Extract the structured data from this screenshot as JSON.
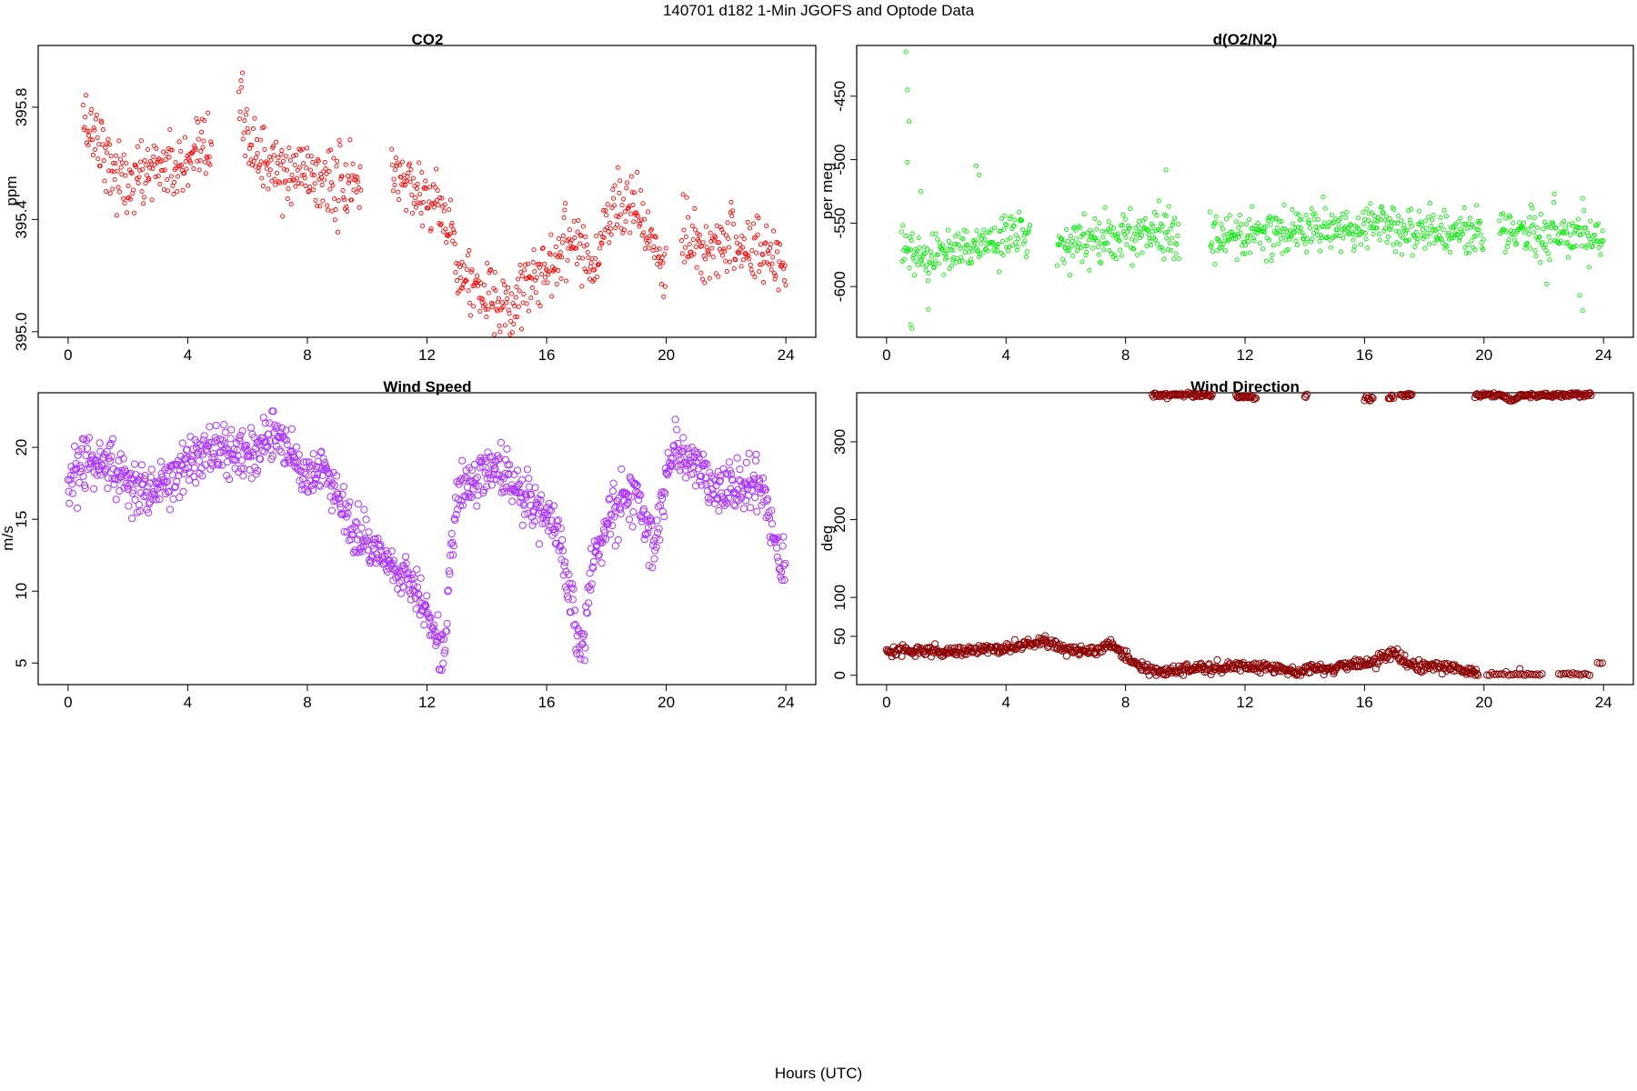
{
  "figure": {
    "title": "140701   d182   1-Min  JGOFS and Optode Data",
    "xlabel": "Hours (UTC)"
  },
  "chart_data": [
    {
      "id": "co2",
      "type": "scatter",
      "title": "CO2",
      "ylabel": "ppm",
      "color": "#ff0000",
      "marker_size": "small",
      "xlim": [
        -1,
        25
      ],
      "ylim": [
        394.98,
        396.02
      ],
      "xticks": [
        0,
        4,
        8,
        12,
        16,
        20,
        24
      ],
      "yticks": [
        395.0,
        395.4,
        395.8
      ],
      "ytick_labels": [
        "395.0",
        "395.4",
        "395.8"
      ],
      "gaps": [
        [
          4.8,
          5.7
        ],
        [
          9.8,
          10.8
        ],
        [
          20.0,
          20.5
        ]
      ],
      "trend": [
        [
          0.5,
          395.75
        ],
        [
          1.0,
          395.7
        ],
        [
          1.5,
          395.58
        ],
        [
          2.0,
          395.52
        ],
        [
          2.5,
          395.56
        ],
        [
          3.0,
          395.6
        ],
        [
          3.5,
          395.58
        ],
        [
          4.0,
          395.58
        ],
        [
          4.5,
          395.62
        ],
        [
          4.8,
          395.66
        ],
        [
          5.7,
          395.8
        ],
        [
          6.2,
          395.65
        ],
        [
          6.8,
          395.58
        ],
        [
          7.3,
          395.55
        ],
        [
          7.8,
          395.58
        ],
        [
          8.3,
          395.55
        ],
        [
          9.0,
          395.52
        ],
        [
          9.8,
          395.52
        ],
        [
          10.8,
          395.58
        ],
        [
          11.5,
          395.52
        ],
        [
          12.2,
          395.47
        ],
        [
          12.8,
          395.36
        ],
        [
          13.3,
          395.18
        ],
        [
          14.0,
          395.12
        ],
        [
          14.8,
          395.05
        ],
        [
          15.2,
          395.18
        ],
        [
          16.0,
          395.22
        ],
        [
          16.5,
          395.3
        ],
        [
          16.9,
          395.35
        ],
        [
          17.2,
          395.3
        ],
        [
          17.6,
          395.22
        ],
        [
          18.0,
          395.4
        ],
        [
          18.5,
          395.48
        ],
        [
          19.0,
          395.45
        ],
        [
          19.5,
          395.3
        ],
        [
          20.0,
          395.2
        ],
        [
          20.5,
          395.35
        ],
        [
          21.2,
          395.25
        ],
        [
          22.0,
          395.35
        ],
        [
          22.5,
          395.3
        ],
        [
          23.3,
          395.28
        ],
        [
          24.0,
          395.23
        ]
      ]
    },
    {
      "id": "o2n2",
      "type": "scatter",
      "title": "d(O2/N2)",
      "ylabel": "per meg",
      "color": "#00ee00",
      "marker_size": "small",
      "xlim": [
        -1,
        25
      ],
      "ylim": [
        -640,
        -410
      ],
      "xticks": [
        0,
        4,
        8,
        12,
        16,
        20,
        24
      ],
      "yticks": [
        -600,
        -550,
        -500,
        -450
      ],
      "ytick_labels": [
        "-600",
        "-550",
        "-500",
        "-450"
      ],
      "gaps": [
        [
          4.8,
          5.7
        ],
        [
          9.8,
          10.8
        ],
        [
          20.0,
          20.5
        ]
      ],
      "trend": [
        [
          0.5,
          -565
        ],
        [
          1.0,
          -575
        ],
        [
          2.0,
          -573
        ],
        [
          3.0,
          -568
        ],
        [
          4.0,
          -562
        ],
        [
          4.8,
          -558
        ],
        [
          5.7,
          -565
        ],
        [
          8.0,
          -560
        ],
        [
          9.8,
          -556
        ],
        [
          10.8,
          -563
        ],
        [
          13.0,
          -558
        ],
        [
          16.0,
          -552
        ],
        [
          18.0,
          -556
        ],
        [
          20.0,
          -558
        ],
        [
          20.5,
          -558
        ],
        [
          22.0,
          -557
        ],
        [
          24.0,
          -560
        ]
      ],
      "outliers": [
        [
          0.65,
          -415
        ],
        [
          0.7,
          -445
        ],
        [
          0.75,
          -470
        ],
        [
          0.7,
          -502
        ],
        [
          0.8,
          -630
        ],
        [
          0.85,
          -633
        ],
        [
          1.15,
          -525
        ],
        [
          1.4,
          -618
        ],
        [
          3.0,
          -505
        ],
        [
          3.1,
          -512
        ],
        [
          9.35,
          -508
        ],
        [
          22.1,
          -598
        ],
        [
          22.35,
          -527
        ],
        [
          23.2,
          -607
        ],
        [
          23.3,
          -619
        ]
      ]
    },
    {
      "id": "wspd",
      "type": "scatter",
      "title": "Wind Speed",
      "ylabel": "m/s",
      "color": "#aa33ff",
      "marker_size": "large",
      "xlim": [
        -1,
        25
      ],
      "ylim": [
        3.5,
        23.8
      ],
      "xticks": [
        0,
        4,
        8,
        12,
        16,
        20,
        24
      ],
      "yticks": [
        5,
        10,
        15,
        20
      ],
      "ytick_labels": [
        "5",
        "10",
        "15",
        "20"
      ],
      "gaps": [],
      "trend": [
        [
          0.0,
          17.0
        ],
        [
          0.5,
          19.0
        ],
        [
          1.0,
          19.0
        ],
        [
          1.5,
          18.5
        ],
        [
          2.0,
          17.5
        ],
        [
          2.5,
          17.0
        ],
        [
          3.0,
          17.0
        ],
        [
          3.5,
          18.0
        ],
        [
          4.0,
          19.0
        ],
        [
          4.5,
          19.5
        ],
        [
          5.0,
          20.0
        ],
        [
          5.5,
          19.5
        ],
        [
          6.0,
          19.5
        ],
        [
          6.5,
          20.5
        ],
        [
          7.0,
          21.0
        ],
        [
          7.5,
          19.5
        ],
        [
          8.0,
          17.5
        ],
        [
          8.5,
          18.5
        ],
        [
          9.0,
          17.0
        ],
        [
          9.5,
          14.0
        ],
        [
          10.0,
          13.0
        ],
        [
          10.5,
          12.5
        ],
        [
          11.0,
          11.5
        ],
        [
          11.5,
          10.5
        ],
        [
          12.0,
          9.0
        ],
        [
          12.3,
          7.0
        ],
        [
          12.6,
          5.5
        ],
        [
          12.8,
          13.0
        ],
        [
          13.0,
          16.5
        ],
        [
          13.5,
          17.5
        ],
        [
          14.0,
          18.5
        ],
        [
          14.5,
          18.5
        ],
        [
          15.0,
          17.0
        ],
        [
          15.5,
          16.0
        ],
        [
          16.0,
          15.5
        ],
        [
          16.5,
          13.0
        ],
        [
          17.0,
          7.5
        ],
        [
          17.2,
          5.5
        ],
        [
          17.5,
          11.5
        ],
        [
          18.0,
          14.5
        ],
        [
          18.5,
          16.5
        ],
        [
          19.0,
          17.0
        ],
        [
          19.3,
          15.0
        ],
        [
          19.6,
          14.0
        ],
        [
          20.0,
          18.0
        ],
        [
          20.3,
          20.0
        ],
        [
          20.8,
          19.0
        ],
        [
          21.5,
          17.5
        ],
        [
          22.0,
          17.0
        ],
        [
          22.5,
          17.5
        ],
        [
          23.0,
          17.5
        ],
        [
          23.3,
          16.5
        ],
        [
          23.6,
          13.5
        ],
        [
          24.0,
          11.0
        ]
      ]
    },
    {
      "id": "wdir",
      "type": "scatter",
      "title": "Wind Direction",
      "ylabel": "deg",
      "color": "#8b0000",
      "marker_size": "large",
      "xlim": [
        -1,
        25
      ],
      "ylim": [
        -12,
        363
      ],
      "xticks": [
        0,
        4,
        8,
        12,
        16,
        20,
        24
      ],
      "yticks": [
        0,
        50,
        100,
        200,
        300
      ],
      "ytick_labels": [
        "0",
        "50",
        "100",
        "200",
        "300"
      ],
      "gaps": [],
      "low_trend": [
        [
          0,
          30
        ],
        [
          1,
          32
        ],
        [
          2,
          30
        ],
        [
          3,
          33
        ],
        [
          4,
          35
        ],
        [
          5,
          42
        ],
        [
          5.2,
          47
        ],
        [
          6,
          33
        ],
        [
          7,
          32
        ],
        [
          7.5,
          40
        ],
        [
          8,
          25
        ],
        [
          8.3,
          18
        ],
        [
          8.5,
          10
        ],
        [
          9,
          5
        ],
        [
          11,
          10
        ],
        [
          12,
          12
        ],
        [
          13,
          8
        ],
        [
          14,
          6
        ],
        [
          15,
          10
        ],
        [
          16,
          15
        ],
        [
          16.5,
          22
        ],
        [
          17,
          30
        ],
        [
          17.2,
          20
        ],
        [
          17.5,
          12
        ],
        [
          18,
          10
        ],
        [
          19,
          10
        ],
        [
          19.5,
          5
        ],
        [
          19.8,
          0
        ]
      ],
      "low_range": [
        0,
        19.8
      ],
      "high_segments": [
        [
          8.9,
          10.9,
          360
        ],
        [
          11.7,
          12.4,
          357
        ],
        [
          14.0,
          14.1,
          361
        ],
        [
          16.0,
          16.3,
          355
        ],
        [
          16.8,
          17.0,
          357
        ],
        [
          17.2,
          17.6,
          360
        ],
        [
          19.7,
          23.6,
          360
        ]
      ],
      "low_extra": [
        [
          20.1,
          22.0,
          0
        ],
        [
          22.5,
          23.6,
          0
        ],
        [
          23.8,
          24.0,
          15
        ],
        [
          21.2,
          21.25,
          6
        ]
      ]
    }
  ]
}
